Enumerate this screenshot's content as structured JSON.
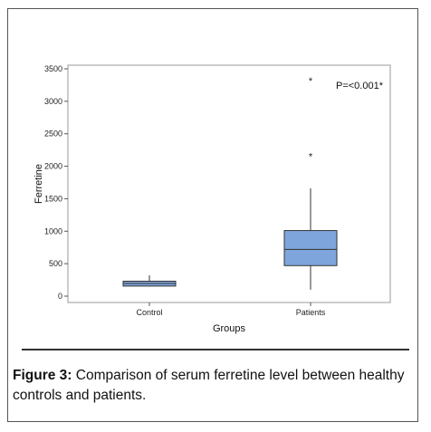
{
  "chart_data": {
    "type": "box",
    "xlabel": "Groups",
    "ylabel": "Ferretine",
    "ylim": [
      -60,
      3550
    ],
    "yticks": [
      0,
      500,
      1000,
      1500,
      2000,
      2500,
      3000,
      3500
    ],
    "categories": [
      "Control",
      "Patients"
    ],
    "boxes": [
      {
        "category": "Control",
        "whisker_low": 150,
        "q1": 155,
        "median": 195,
        "q3": 230,
        "whisker_high": 320,
        "outliers": []
      },
      {
        "category": "Patients",
        "whisker_low": 100,
        "q1": 470,
        "median": 720,
        "q3": 1010,
        "whisker_high": 1660,
        "outliers": [
          2180,
          3350
        ]
      }
    ],
    "annotation": "P=<0.001*",
    "outlier_symbol": "*",
    "box_color": "#7fa6dc",
    "grid": false
  },
  "caption": {
    "label": "Figure 3:",
    "text": " Comparison of serum ferretine level between healthy controls and patients."
  }
}
